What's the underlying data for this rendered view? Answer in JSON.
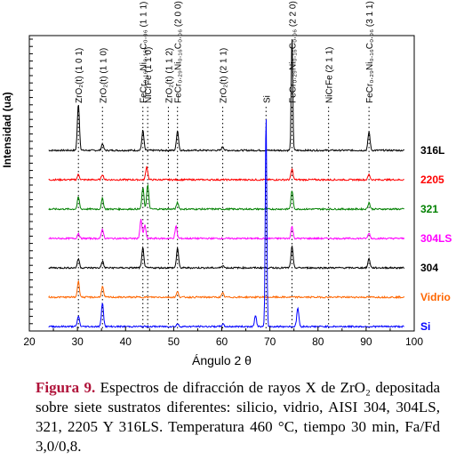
{
  "chart_data": {
    "type": "line",
    "title": "",
    "xlabel": "Ángulo 2 θ",
    "ylabel": "Intensidad (ua)",
    "xlim": [
      20,
      100
    ],
    "x_ticks": [
      20,
      30,
      40,
      50,
      60,
      70,
      80,
      90,
      100
    ],
    "grid": false,
    "legend": "series labels at right end of each trace",
    "reference_lines": [
      {
        "x": 30.2,
        "label": "ZrO₂(t) (1 0 1)"
      },
      {
        "x": 35.2,
        "label": "ZrO₂(t) (1 1 0)"
      },
      {
        "x": 43.6,
        "label": "FeCr₀.₁₆Ni₀.₁₆C₀.₀₆ (1 1 1)"
      },
      {
        "x": 44.6,
        "label": "NiCrFe (1 1 0)"
      },
      {
        "x": 48.9,
        "label": "ZrO₂(t) (1 1 2)"
      },
      {
        "x": 50.8,
        "label": "FeCr₀.₂₉Ni₀.₁₆C₀.₀₆ (2 0 0)"
      },
      {
        "x": 60.2,
        "label": "ZrO₂(t) (2 1 1)"
      },
      {
        "x": 69.2,
        "label": "Si"
      },
      {
        "x": 74.6,
        "label": "FeCr₀.₂₉Ni₀.₁₆C₀.₀₆ (2 2 0)"
      },
      {
        "x": 82.2,
        "label": "NiCrFe (2 1 1)"
      },
      {
        "x": 90.6,
        "label": "FeCr₀.₂₉Ni₀.₁₆C₀.₀₆ (3 1 1)"
      }
    ],
    "series": [
      {
        "name": "316L",
        "color": "#000000",
        "offset": 6,
        "peaks": [
          {
            "x": 30.2,
            "h": 1.75
          },
          {
            "x": 35.2,
            "h": 0.25
          },
          {
            "x": 43.6,
            "h": 0.75
          },
          {
            "x": 50.8,
            "h": 0.75
          },
          {
            "x": 60.2,
            "h": 0.15
          },
          {
            "x": 74.6,
            "h": 4.3
          },
          {
            "x": 90.6,
            "h": 0.7
          }
        ]
      },
      {
        "name": "2205",
        "color": "#ff0000",
        "offset": 5,
        "peaks": [
          {
            "x": 30.2,
            "h": 0.2
          },
          {
            "x": 35.2,
            "h": 0.2
          },
          {
            "x": 44.4,
            "h": 0.5
          },
          {
            "x": 74.6,
            "h": 0.4
          },
          {
            "x": 90.6,
            "h": 0.2
          }
        ]
      },
      {
        "name": "321",
        "color": "#008000",
        "offset": 4,
        "peaks": [
          {
            "x": 30.2,
            "h": 0.45
          },
          {
            "x": 35.2,
            "h": 0.4
          },
          {
            "x": 43.6,
            "h": 0.8
          },
          {
            "x": 44.6,
            "h": 0.9
          },
          {
            "x": 50.8,
            "h": 0.25
          },
          {
            "x": 74.6,
            "h": 0.7
          },
          {
            "x": 90.6,
            "h": 0.25
          }
        ]
      },
      {
        "name": "304LS",
        "color": "#ff00ff",
        "offset": 3,
        "peaks": [
          {
            "x": 30.2,
            "h": 0.2
          },
          {
            "x": 35.2,
            "h": 0.35
          },
          {
            "x": 43.2,
            "h": 0.7
          },
          {
            "x": 44.0,
            "h": 0.5
          },
          {
            "x": 50.5,
            "h": 0.45
          },
          {
            "x": 74.6,
            "h": 0.45
          },
          {
            "x": 90.6,
            "h": 0.2
          }
        ]
      },
      {
        "name": "304",
        "color": "#000000",
        "offset": 2,
        "peaks": [
          {
            "x": 30.2,
            "h": 0.35
          },
          {
            "x": 35.2,
            "h": 0.25
          },
          {
            "x": 43.6,
            "h": 0.75
          },
          {
            "x": 50.8,
            "h": 0.75
          },
          {
            "x": 60.2,
            "h": 0.1
          },
          {
            "x": 74.6,
            "h": 0.8
          },
          {
            "x": 90.6,
            "h": 0.35
          }
        ]
      },
      {
        "name": "Vidrio",
        "color": "#ff6600",
        "offset": 1,
        "peaks": [
          {
            "x": 30.2,
            "h": 0.6
          },
          {
            "x": 35.2,
            "h": 0.4
          },
          {
            "x": 50.8,
            "h": 0.2
          },
          {
            "x": 60.2,
            "h": 0.15
          }
        ]
      },
      {
        "name": "Si",
        "color": "#0000ff",
        "offset": 0,
        "peaks": [
          {
            "x": 30.2,
            "h": 0.4
          },
          {
            "x": 35.2,
            "h": 0.9
          },
          {
            "x": 50.8,
            "h": 0.1
          },
          {
            "x": 60.2,
            "h": 0.1
          },
          {
            "x": 67.0,
            "h": 0.4
          },
          {
            "x": 69.2,
            "h": 8.0
          },
          {
            "x": 75.8,
            "h": 0.7
          }
        ]
      }
    ]
  },
  "caption": {
    "lead": "Figura 9.",
    "text": "Espectros de difracción de rayos X de ZrO₂ depositada sobre siete sustratos diferentes: silicio, vidrio, AISI 304, 304LS, 321, 2205 Y 316LS. Temperatura 460 °C, tiempo 30 min, Fa/Fd 3,0/0,8."
  }
}
